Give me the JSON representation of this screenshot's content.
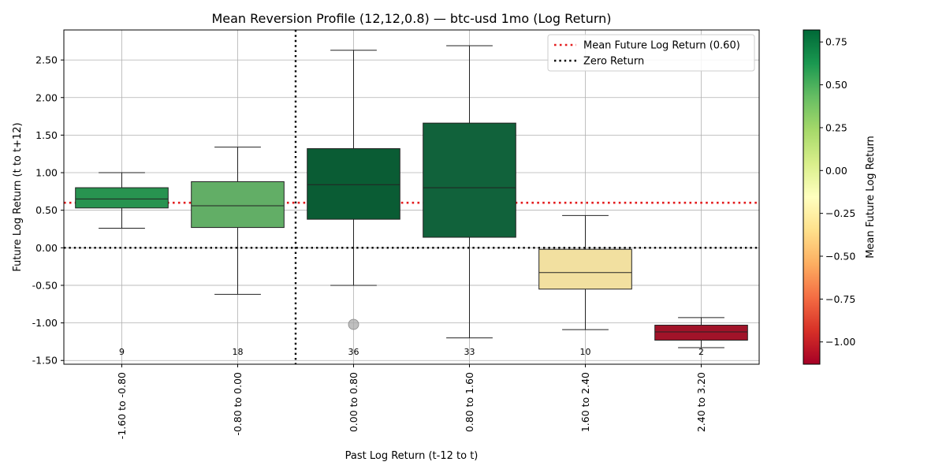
{
  "chart_data": {
    "type": "box",
    "title": "Mean Reversion Profile (12,12,0.8) — btc-usd 1mo (Log Return)",
    "xlabel": "Past Log Return (t-12 to t)",
    "ylabel": "Future Log Return (t to t+12)",
    "ylim": [
      -1.55,
      2.9
    ],
    "yticks": [
      "2.50",
      "2.00",
      "1.50",
      "1.00",
      "0.50",
      "0.00",
      "-0.50",
      "-1.00",
      "-1.50"
    ],
    "ytick_values": [
      2.5,
      2.0,
      1.5,
      1.0,
      0.5,
      0.0,
      -0.5,
      -1.0,
      -1.5
    ],
    "grid": true,
    "legend_position": "top-right",
    "categories": [
      "-1.60 to -0.80",
      "-0.80 to 0.00",
      "0.00 to 0.80",
      "0.80 to 1.60",
      "1.60 to 2.40",
      "2.40 to 3.20"
    ],
    "boxes": [
      {
        "whisker_low": 0.26,
        "q1": 0.53,
        "median": 0.65,
        "q3": 0.8,
        "whisker_high": 1.0,
        "count": "9",
        "color": "#289350",
        "outliers": []
      },
      {
        "whisker_low": -0.62,
        "q1": 0.27,
        "median": 0.56,
        "q3": 0.88,
        "whisker_high": 1.34,
        "count": "18",
        "color": "#62ae66",
        "outliers": []
      },
      {
        "whisker_low": -0.5,
        "q1": 0.38,
        "median": 0.84,
        "q3": 1.32,
        "whisker_high": 2.63,
        "count": "36",
        "color": "#0a5c34",
        "outliers": [
          -1.02
        ]
      },
      {
        "whisker_low": -1.2,
        "q1": 0.14,
        "median": 0.8,
        "q3": 1.66,
        "whisker_high": 2.69,
        "count": "33",
        "color": "#11623b",
        "outliers": []
      },
      {
        "whisker_low": -1.09,
        "q1": -0.55,
        "median": -0.33,
        "q3": -0.02,
        "whisker_high": 0.43,
        "count": "10",
        "color": "#f2e0a0",
        "outliers": []
      },
      {
        "whisker_low": -1.33,
        "q1": -1.23,
        "median": -1.12,
        "q3": -1.03,
        "whisker_high": -0.93,
        "count": "2",
        "color": "#a11329",
        "outliers": []
      }
    ],
    "reference_lines": {
      "mean_value": 0.6,
      "mean_label": "Mean Future Log Return (0.60)",
      "mean_color": "#e31a1c",
      "zero_value": 0.0,
      "zero_label": "Zero Return",
      "zero_color": "#000000",
      "vertical_at_category_boundary": 2
    },
    "colorbar": {
      "label": "Mean Future Log Return",
      "range": [
        -1.13,
        0.82
      ],
      "ticks": [
        "0.75",
        "0.50",
        "0.25",
        "0.00",
        "−0.25",
        "−0.50",
        "−0.75",
        "−1.00"
      ],
      "tick_values": [
        0.75,
        0.5,
        0.25,
        0.0,
        -0.25,
        -0.5,
        -0.75,
        -1.0
      ],
      "colormap": "RdYlGn"
    }
  }
}
